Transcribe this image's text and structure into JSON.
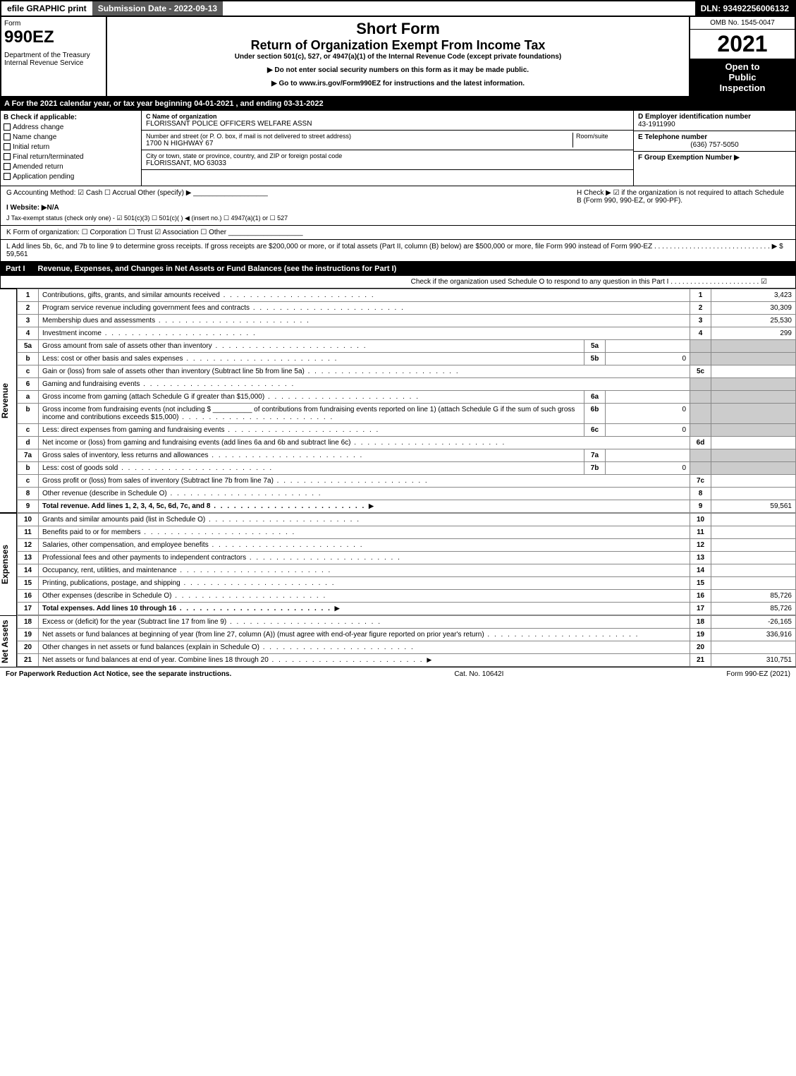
{
  "topbar": {
    "efile": "efile GRAPHIC print",
    "subdate": "Submission Date - 2022-09-13",
    "dln": "DLN: 93492256006132"
  },
  "header": {
    "form_label": "Form",
    "form_no": "990EZ",
    "dept": "Department of the Treasury",
    "irs": "Internal Revenue Service",
    "title1": "Short Form",
    "title2": "Return of Organization Exempt From Income Tax",
    "title3": "Under section 501(c), 527, or 4947(a)(1) of the Internal Revenue Code (except private foundations)",
    "title4a": "▶ Do not enter social security numbers on this form as it may be made public.",
    "title4b": "▶ Go to www.irs.gov/Form990EZ for instructions and the latest information.",
    "omb": "OMB No. 1545-0047",
    "year": "2021",
    "inspect1": "Open to",
    "inspect2": "Public",
    "inspect3": "Inspection"
  },
  "sectionA": "A  For the 2021 calendar year, or tax year beginning 04-01-2021 , and ending 03-31-2022",
  "boxB": {
    "label": "B  Check if applicable:",
    "items": [
      "Address change",
      "Name change",
      "Initial return",
      "Final return/terminated",
      "Amended return",
      "Application pending"
    ]
  },
  "orgblock": {
    "c_label": "C Name of organization",
    "c_name": "FLORISSANT POLICE OFFICERS WELFARE ASSN",
    "addr_label": "Number and street (or P. O. box, if mail is not delivered to street address)",
    "room_label": "Room/suite",
    "addr": "1700 N HIGHWAY 67",
    "city_label": "City or town, state or province, country, and ZIP or foreign postal code",
    "city": "FLORISSANT, MO  63033"
  },
  "rightcol": {
    "d_label": "D Employer identification number",
    "d_val": "43-1911990",
    "e_label": "E Telephone number",
    "e_val": "(636) 757-5050",
    "f_label": "F Group Exemption Number  ▶"
  },
  "ghij": {
    "g": "G Accounting Method:    ☑ Cash   ☐ Accrual   Other (specify) ▶ ___________________",
    "h": "H  Check ▶  ☑  if the organization is not required to attach Schedule B (Form 990, 990-EZ, or 990-PF).",
    "i": "I Website: ▶N/A",
    "j": "J Tax-exempt status (check only one) -  ☑ 501(c)(3)  ☐  501(c)(  ) ◀ (insert no.)  ☐  4947(a)(1) or  ☐  527",
    "k": "K Form of organization:   ☐ Corporation   ☐ Trust   ☑ Association   ☐ Other   ___________________",
    "l": "L Add lines 5b, 6c, and 7b to line 9 to determine gross receipts. If gross receipts are $200,000 or more, or if total assets (Part II, column (B) below) are $500,000 or more, file Form 990 instead of Form 990-EZ  . . . . . . . . . . . . . . . . . . . . . . . . . . . . . .  ▶ $ 59,561"
  },
  "part1": {
    "label": "Part I",
    "title": "Revenue, Expenses, and Changes in Net Assets or Fund Balances (see the instructions for Part I)",
    "check": "Check if the organization used Schedule O to respond to any question in this Part I . . . . . . . . . . . . . . . . . . . . . . .  ☑"
  },
  "sidebars": {
    "revenue": "Revenue",
    "expenses": "Expenses",
    "netassets": "Net Assets"
  },
  "rows": [
    {
      "n": "1",
      "d": "Contributions, gifts, grants, and similar amounts received",
      "ln": "1",
      "v": "3,423"
    },
    {
      "n": "2",
      "d": "Program service revenue including government fees and contracts",
      "ln": "2",
      "v": "30,309"
    },
    {
      "n": "3",
      "d": "Membership dues and assessments",
      "ln": "3",
      "v": "25,530"
    },
    {
      "n": "4",
      "d": "Investment income",
      "ln": "4",
      "v": "299"
    },
    {
      "n": "5a",
      "d": "Gross amount from sale of assets other than inventory",
      "sub": "5a",
      "sv": ""
    },
    {
      "n": "b",
      "d": "Less: cost or other basis and sales expenses",
      "sub": "5b",
      "sv": "0"
    },
    {
      "n": "c",
      "d": "Gain or (loss) from sale of assets other than inventory (Subtract line 5b from line 5a)",
      "ln": "5c",
      "v": ""
    },
    {
      "n": "6",
      "d": "Gaming and fundraising events"
    },
    {
      "n": "a",
      "d": "Gross income from gaming (attach Schedule G if greater than $15,000)",
      "sub": "6a",
      "sv": ""
    },
    {
      "n": "b",
      "d": "Gross income from fundraising events (not including $ __________ of contributions from fundraising events reported on line 1) (attach Schedule G if the sum of such gross income and contributions exceeds $15,000)",
      "sub": "6b",
      "sv": "0"
    },
    {
      "n": "c",
      "d": "Less: direct expenses from gaming and fundraising events",
      "sub": "6c",
      "sv": "0"
    },
    {
      "n": "d",
      "d": "Net income or (loss) from gaming and fundraising events (add lines 6a and 6b and subtract line 6c)",
      "ln": "6d",
      "v": ""
    },
    {
      "n": "7a",
      "d": "Gross sales of inventory, less returns and allowances",
      "sub": "7a",
      "sv": ""
    },
    {
      "n": "b",
      "d": "Less: cost of goods sold",
      "sub": "7b",
      "sv": "0"
    },
    {
      "n": "c",
      "d": "Gross profit or (loss) from sales of inventory (Subtract line 7b from line 7a)",
      "ln": "7c",
      "v": ""
    },
    {
      "n": "8",
      "d": "Other revenue (describe in Schedule O)",
      "ln": "8",
      "v": ""
    },
    {
      "n": "9",
      "d": "Total revenue. Add lines 1, 2, 3, 4, 5c, 6d, 7c, and 8",
      "ln": "9",
      "v": "59,561",
      "arrow": true,
      "bold": true
    }
  ],
  "exp_rows": [
    {
      "n": "10",
      "d": "Grants and similar amounts paid (list in Schedule O)",
      "ln": "10",
      "v": ""
    },
    {
      "n": "11",
      "d": "Benefits paid to or for members",
      "ln": "11",
      "v": ""
    },
    {
      "n": "12",
      "d": "Salaries, other compensation, and employee benefits",
      "ln": "12",
      "v": ""
    },
    {
      "n": "13",
      "d": "Professional fees and other payments to independent contractors",
      "ln": "13",
      "v": ""
    },
    {
      "n": "14",
      "d": "Occupancy, rent, utilities, and maintenance",
      "ln": "14",
      "v": ""
    },
    {
      "n": "15",
      "d": "Printing, publications, postage, and shipping",
      "ln": "15",
      "v": ""
    },
    {
      "n": "16",
      "d": "Other expenses (describe in Schedule O)",
      "ln": "16",
      "v": "85,726"
    },
    {
      "n": "17",
      "d": "Total expenses. Add lines 10 through 16",
      "ln": "17",
      "v": "85,726",
      "arrow": true,
      "bold": true
    }
  ],
  "net_rows": [
    {
      "n": "18",
      "d": "Excess or (deficit) for the year (Subtract line 17 from line 9)",
      "ln": "18",
      "v": "-26,165"
    },
    {
      "n": "19",
      "d": "Net assets or fund balances at beginning of year (from line 27, column (A)) (must agree with end-of-year figure reported on prior year's return)",
      "ln": "19",
      "v": "336,916"
    },
    {
      "n": "20",
      "d": "Other changes in net assets or fund balances (explain in Schedule O)",
      "ln": "20",
      "v": ""
    },
    {
      "n": "21",
      "d": "Net assets or fund balances at end of year. Combine lines 18 through 20",
      "ln": "21",
      "v": "310,751",
      "arrow": true
    }
  ],
  "footer": {
    "left": "For Paperwork Reduction Act Notice, see the separate instructions.",
    "mid": "Cat. No. 10642I",
    "right": "Form 990-EZ (2021)"
  }
}
